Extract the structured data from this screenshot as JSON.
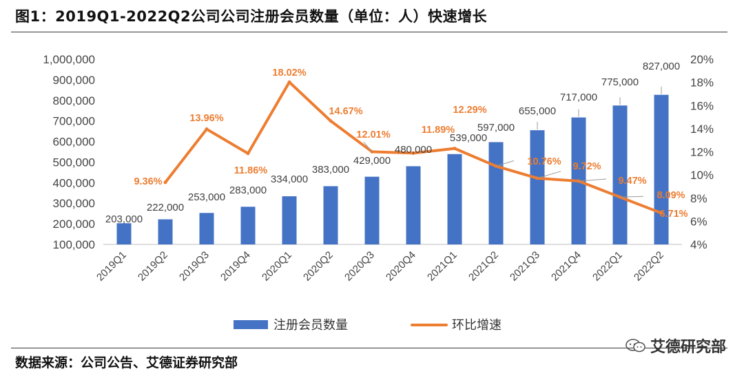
{
  "title": "图1：2019Q1-2022Q2公司公司注册会员数量（单位：人）快速增长",
  "source": "数据来源：公司公告、艾德证券研究部",
  "watermark": "艾德研究部",
  "chart_data": {
    "type": "bar+line",
    "categories": [
      "2019Q1",
      "2019Q2",
      "2019Q3",
      "2019Q4",
      "2020Q1",
      "2020Q2",
      "2020Q3",
      "2020Q4",
      "2021Q1",
      "2021Q2",
      "2021Q3",
      "2021Q4",
      "2022Q1",
      "2022Q2"
    ],
    "series": [
      {
        "name": "注册会员数量",
        "type": "bar",
        "axis": "left",
        "color": "#4472C4",
        "values": [
          203000,
          222000,
          253000,
          283000,
          334000,
          383000,
          429000,
          480000,
          539000,
          597000,
          655000,
          717000,
          775000,
          827000
        ],
        "labels": [
          "203,000",
          "222,000",
          "253,000",
          "283,000",
          "334,000",
          "383,000",
          "429,000",
          "480,000",
          "539,000",
          "597,000",
          "655,000",
          "717,000",
          "775,000",
          "827,000"
        ]
      },
      {
        "name": "环比增速",
        "type": "line",
        "axis": "right",
        "color": "#ED7D31",
        "values": [
          null,
          9.36,
          13.96,
          11.86,
          18.02,
          14.67,
          12.01,
          11.89,
          12.29,
          10.76,
          9.72,
          9.47,
          8.09,
          6.71
        ],
        "labels": [
          "",
          "9.36%",
          "13.96%",
          "11.86%",
          "18.02%",
          "14.67%",
          "12.01%",
          "11.89%",
          "12.29%",
          "10.76%",
          "9.72%",
          "9.47%",
          "8.09%",
          "6.71%"
        ]
      }
    ],
    "y_left": {
      "min": 100000,
      "max": 1000000,
      "ticks": [
        100000,
        200000,
        300000,
        400000,
        500000,
        600000,
        700000,
        800000,
        900000,
        1000000
      ],
      "tick_labels": [
        "100,000",
        "200,000",
        "300,000",
        "400,000",
        "500,000",
        "600,000",
        "700,000",
        "800,000",
        "900,000",
        "1,000,000"
      ]
    },
    "y_right": {
      "min": 4,
      "max": 20,
      "ticks": [
        4,
        6,
        8,
        10,
        12,
        14,
        16,
        18,
        20
      ],
      "tick_labels": [
        "4%",
        "6%",
        "8%",
        "10%",
        "12%",
        "14%",
        "16%",
        "18%",
        "20%"
      ]
    },
    "grid": false,
    "legend_position": "bottom"
  }
}
